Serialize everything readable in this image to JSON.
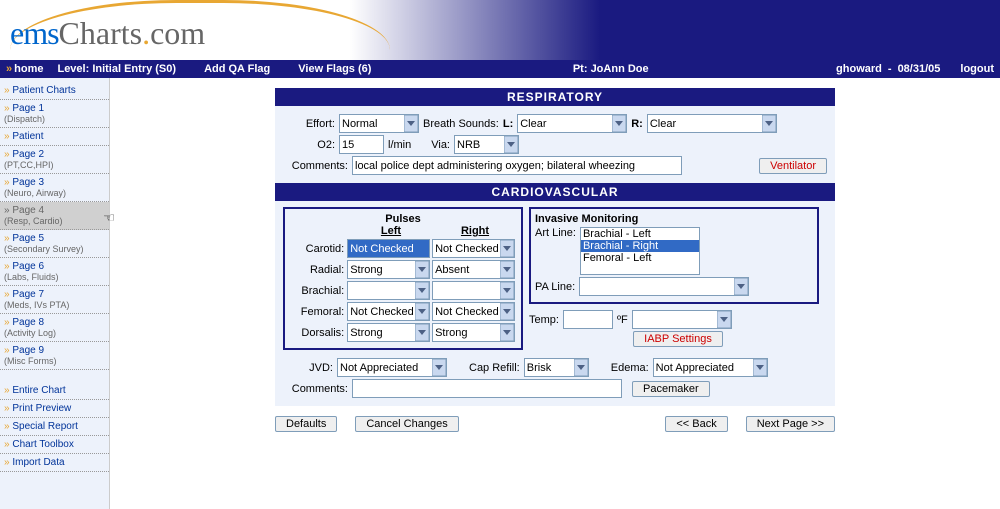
{
  "logo": {
    "ems": "ems",
    "charts": "Charts",
    "dot": ".",
    "com": "com"
  },
  "nav": {
    "home": "home",
    "level": "Level: Initial Entry (S0)",
    "addQA": "Add QA Flag",
    "viewFlags": "View Flags (6)",
    "patient": "Pt: JoAnn Doe",
    "user": "ghoward",
    "sep": "-",
    "date": "08/31/05",
    "logout": "logout"
  },
  "sidebar": [
    {
      "label": "Patient Charts"
    },
    {
      "label": "Page 1",
      "sub": "(Dispatch)"
    },
    {
      "label": "Patient"
    },
    {
      "label": "Page 2",
      "sub": "(PT,CC,HPI)"
    },
    {
      "label": "Page 3",
      "sub": "(Neuro, Airway)"
    },
    {
      "label": "Page 4",
      "sub": "(Resp, Cardio)",
      "active": true
    },
    {
      "label": "Page 5",
      "sub": "(Secondary Survey)"
    },
    {
      "label": "Page 6",
      "sub": "(Labs, Fluids)"
    },
    {
      "label": "Page 7",
      "sub": "(Meds, IVs PTA)"
    },
    {
      "label": "Page 8",
      "sub": "(Activity Log)"
    },
    {
      "label": "Page 9",
      "sub": "(Misc Forms)"
    },
    {
      "label": "Entire Chart"
    },
    {
      "label": "Print Preview"
    },
    {
      "label": "Special Report"
    },
    {
      "label": "Chart Toolbox"
    },
    {
      "label": "Import Data"
    }
  ],
  "respiratory": {
    "title": "RESPIRATORY",
    "effortLabel": "Effort:",
    "effortValue": "Normal",
    "breathSoundsLabel": "Breath Sounds:",
    "lLabel": "L:",
    "lValue": "Clear",
    "rLabel": "R:",
    "rValue": "Clear",
    "o2Label": "O2:",
    "o2Value": "15",
    "o2Unit": "l/min",
    "viaLabel": "Via:",
    "viaValue": "NRB",
    "commentsLabel": "Comments:",
    "commentsValue": "local police dept administering oxygen; bilateral wheezing",
    "ventilatorBtn": "Ventilator"
  },
  "cardio": {
    "title": "CARDIOVASCULAR",
    "pulsesTitle": "Pulses",
    "leftHdr": "Left",
    "rightHdr": "Right",
    "rows": {
      "carotid": {
        "label": "Carotid:",
        "left": "Not Checked",
        "right": "Not Checked",
        "leftHL": true
      },
      "radial": {
        "label": "Radial:",
        "left": "Strong",
        "right": "Absent"
      },
      "brachial": {
        "label": "Brachial:",
        "left": "",
        "right": ""
      },
      "femoral": {
        "label": "Femoral:",
        "left": "Not Checked",
        "right": "Not Checked"
      },
      "dorsalis": {
        "label": "Dorsalis:",
        "left": "Strong",
        "right": "Strong"
      }
    },
    "invTitle": "Invasive Monitoring",
    "artLineLabel": "Art Line:",
    "artLineOptions": [
      "Brachial - Left",
      "Brachial - Right",
      "Femoral - Left"
    ],
    "artLineSelected": 1,
    "paLineLabel": "PA Line:",
    "paLineValue": "",
    "tempLabel": "Temp:",
    "tempValue": "",
    "tempUnit": "ºF",
    "tempMethod": "",
    "iabpBtn": "IABP Settings",
    "jvdLabel": "JVD:",
    "jvdValue": "Not Appreciated",
    "capRefillLabel": "Cap Refill:",
    "capRefillValue": "Brisk",
    "edemaLabel": "Edema:",
    "edemaValue": "Not Appreciated",
    "commentsLabel": "Comments:",
    "commentsValue": "",
    "pacemakerBtn": "Pacemaker"
  },
  "footer": {
    "defaults": "Defaults",
    "cancel": "Cancel Changes",
    "back": "<< Back",
    "next": "Next Page >>"
  }
}
